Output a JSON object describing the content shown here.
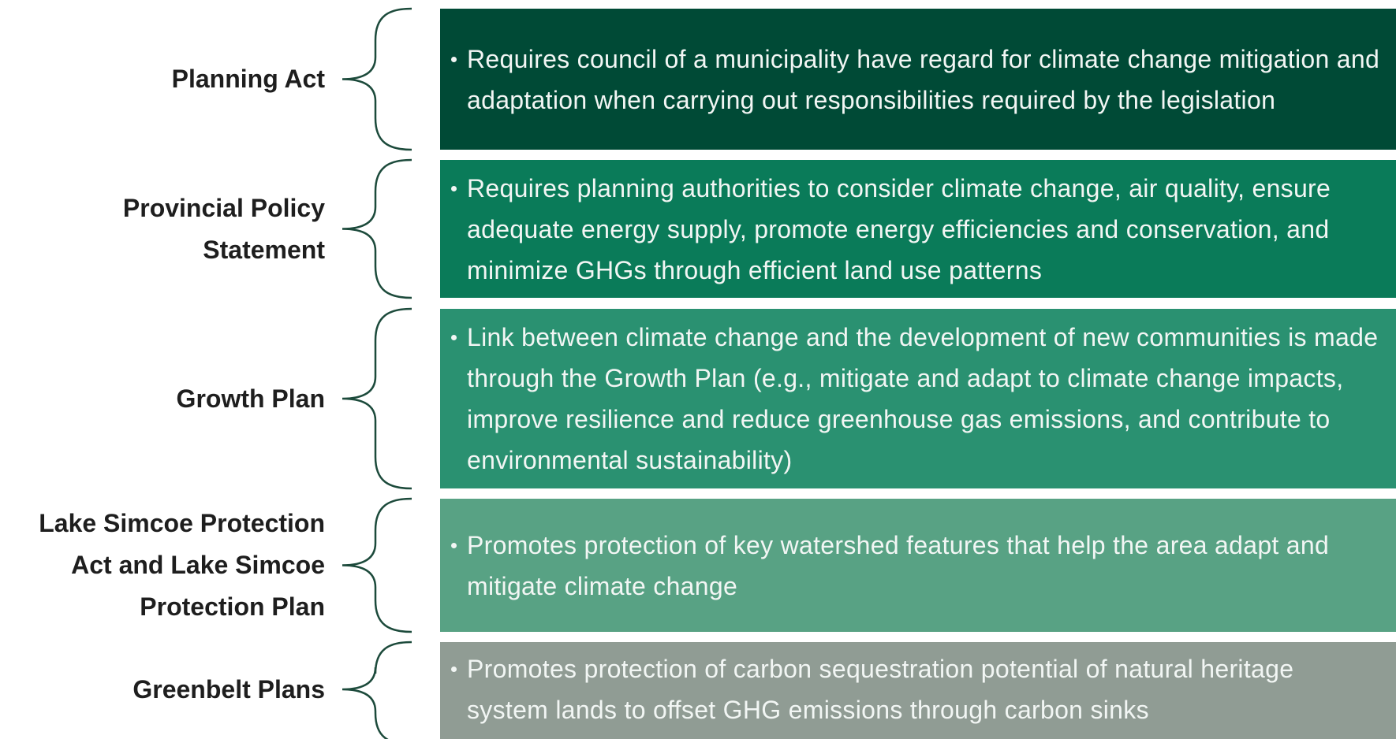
{
  "rows": [
    {
      "label": "Planning Act",
      "text": "Requires council of a municipality have regard for climate change mitigation and adaptation when carrying out responsibilities required by the legislation"
    },
    {
      "label": "Provincial Policy Statement",
      "text": "Requires planning authorities to consider climate change, air quality, ensure adequate energy supply, promote energy efficiencies and conservation, and minimize GHGs through efficient land use patterns"
    },
    {
      "label": "Growth Plan",
      "text": "Link between climate change and the development of new communities is made through the Growth Plan (e.g., mitigate and adapt to climate change impacts, improve resilience and reduce greenhouse gas emissions, and contribute to environmental sustainability)"
    },
    {
      "label": "Lake Simcoe Protection Act and Lake Simcoe Protection Plan",
      "text": "Promotes protection of key watershed features that help the area adapt and mitigate climate change"
    },
    {
      "label": "Greenbelt Plans",
      "text": "Promotes protection of carbon sequestration potential of natural heritage system lands to offset GHG emissions through carbon sinks"
    }
  ]
}
